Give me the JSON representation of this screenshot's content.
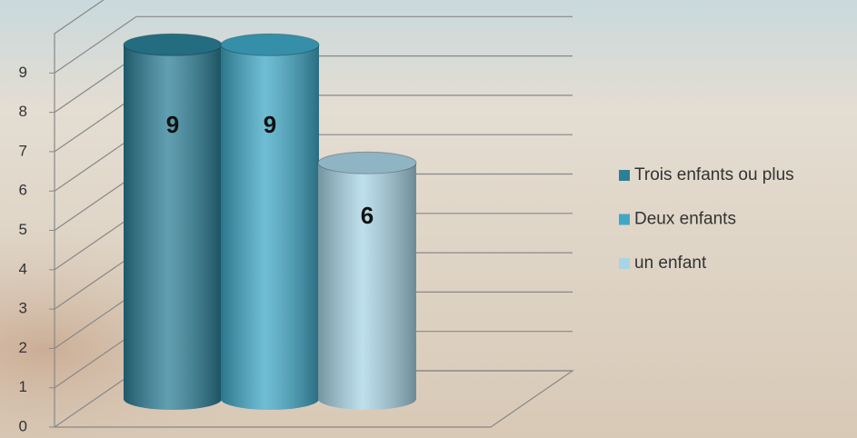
{
  "chart_data": {
    "type": "bar",
    "categories": [
      null
    ],
    "series": [
      {
        "name": "Trois enfants ou plus",
        "color": "#2b7f97",
        "values": [
          9
        ]
      },
      {
        "name": "Deux enfants",
        "color": "#3fa8c6",
        "values": [
          9
        ]
      },
      {
        "name": "un enfant",
        "color": "#a8d4e6",
        "values": [
          6
        ]
      }
    ],
    "ylim": [
      0,
      10
    ],
    "yticks": [
      0,
      1,
      2,
      3,
      4,
      5,
      6,
      7,
      8,
      9
    ],
    "grid": true,
    "legend": "right"
  }
}
